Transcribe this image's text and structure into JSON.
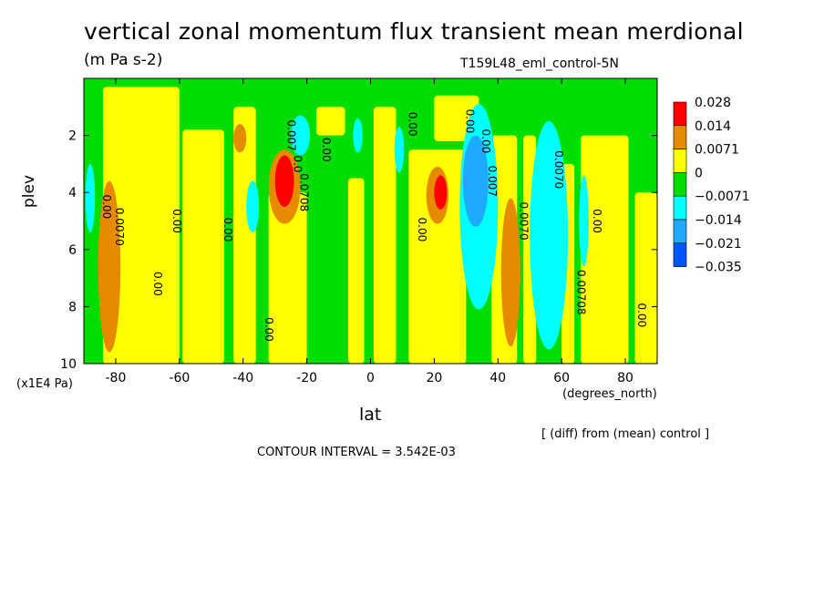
{
  "title": "vertical zonal momentum flux transient mean merdional",
  "units": "(m Pa s-2)",
  "dataset": "T159L48_eml_control-5N",
  "diff_note": "[ (diff) from (mean) control ]",
  "contour_interval": "CONTOUR INTERVAL = 3.542E-03",
  "chart_data": {
    "type": "heatmap",
    "xlabel": "lat",
    "x_units": "(degrees_north)",
    "ylabel": "plev",
    "y_units": "(x1E4 Pa)",
    "xlim": [
      -90,
      90
    ],
    "ylim": [
      10,
      0
    ],
    "x_ticks": [
      "-80",
      "-60",
      "-40",
      "-20",
      "0",
      "20",
      "40",
      "60",
      "80"
    ],
    "y_ticks": [
      "2",
      "4",
      "6",
      "8",
      "10"
    ],
    "legend": {
      "labels": [
        "0.028",
        "0.014",
        "0.0071",
        "0",
        "−0.0071",
        "−0.014",
        "−0.021",
        "−0.035"
      ],
      "colors": [
        "#ff0000",
        "#e68a00",
        "#ffff00",
        "#00dd00",
        "#00ffff",
        "#1eaaff",
        "#0055ff"
      ]
    },
    "contour_labels": [
      {
        "text": "0.00",
        "lat": -84,
        "p": 4.5
      },
      {
        "text": "0.0070",
        "lat": -80,
        "p": 5.2
      },
      {
        "text": "0.00",
        "lat": -62,
        "p": 5.0
      },
      {
        "text": "0.00",
        "lat": -68,
        "p": 7.2
      },
      {
        "text": "0.00",
        "lat": -46,
        "p": 5.3
      },
      {
        "text": "0.00",
        "lat": -33,
        "p": 8.8
      },
      {
        "text": "0.007",
        "lat": -26,
        "p": 2.0
      },
      {
        "text": "0.00",
        "lat": -15,
        "p": 2.5
      },
      {
        "text": "0.0708",
        "lat": -22,
        "p": 4.0
      },
      {
        "text": "0.0",
        "lat": -24,
        "p": 3.0
      },
      {
        "text": "0.00",
        "lat": 12,
        "p": 1.6
      },
      {
        "text": "0.00",
        "lat": 15,
        "p": 5.3
      },
      {
        "text": "0.00",
        "lat": 30,
        "p": 1.5
      },
      {
        "text": "0.00",
        "lat": 35,
        "p": 2.2
      },
      {
        "text": "0.007",
        "lat": 37,
        "p": 3.6
      },
      {
        "text": "0.0070",
        "lat": 47,
        "p": 5.0
      },
      {
        "text": "0.0070",
        "lat": 58,
        "p": 3.2
      },
      {
        "text": "0.00",
        "lat": 70,
        "p": 5.0
      },
      {
        "text": "0.00708",
        "lat": 65,
        "p": 7.5
      },
      {
        "text": "0.00",
        "lat": 84,
        "p": 8.3
      }
    ]
  }
}
